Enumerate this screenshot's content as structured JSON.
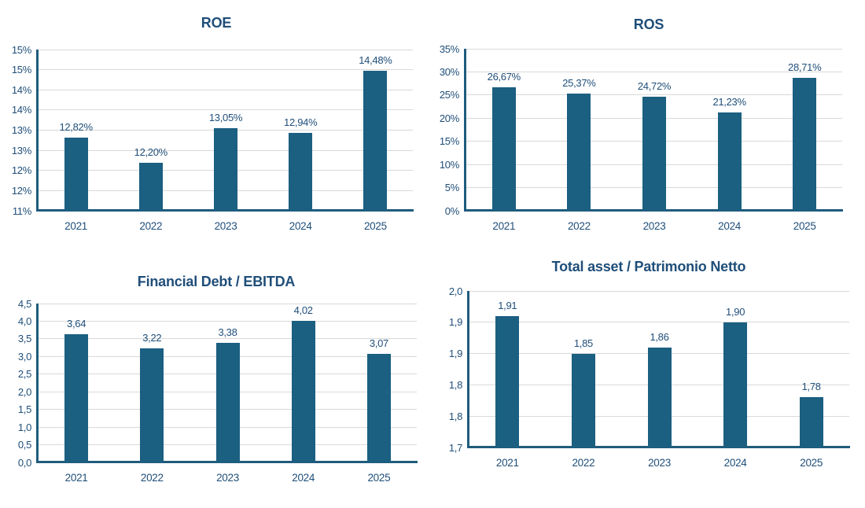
{
  "colors": {
    "bar": "#1B5F81",
    "title": "#1F4E79",
    "label": "#1F4E79",
    "axis_line": "#1F5C7D",
    "gridline": "#D9D9D9",
    "background": "#FFFFFF"
  },
  "chart_data": [
    {
      "type": "bar",
      "title": "ROE",
      "categories": [
        "2021",
        "2022",
        "2023",
        "2024",
        "2025"
      ],
      "values": [
        12.82,
        12.2,
        13.05,
        12.94,
        14.48
      ],
      "data_labels": [
        "12,82%",
        "12,20%",
        "13,05%",
        "12,94%",
        "14,48%"
      ],
      "xlabel": "",
      "ylabel": "",
      "ylim": [
        11,
        15
      ],
      "grid": true,
      "legend": "none",
      "y_ticks": [
        {
          "value": 11.0,
          "label": "11%"
        },
        {
          "value": 11.5,
          "label": "12%"
        },
        {
          "value": 12.0,
          "label": "12%"
        },
        {
          "value": 12.5,
          "label": "13%"
        },
        {
          "value": 13.0,
          "label": "13%"
        },
        {
          "value": 13.5,
          "label": "14%"
        },
        {
          "value": 14.0,
          "label": "14%"
        },
        {
          "value": 14.5,
          "label": "15%"
        },
        {
          "value": 15.0,
          "label": "15%"
        }
      ]
    },
    {
      "type": "bar",
      "title": "ROS",
      "categories": [
        "2021",
        "2022",
        "2023",
        "2024",
        "2025"
      ],
      "values": [
        26.67,
        25.37,
        24.72,
        21.23,
        28.71
      ],
      "data_labels": [
        "26,67%",
        "25,37%",
        "24,72%",
        "21,23%",
        "28,71%"
      ],
      "xlabel": "",
      "ylabel": "",
      "ylim": [
        0,
        35
      ],
      "grid": true,
      "legend": "none",
      "y_ticks": [
        {
          "value": 0,
          "label": "0%"
        },
        {
          "value": 5,
          "label": "5%"
        },
        {
          "value": 10,
          "label": "10%"
        },
        {
          "value": 15,
          "label": "15%"
        },
        {
          "value": 20,
          "label": "20%"
        },
        {
          "value": 25,
          "label": "25%"
        },
        {
          "value": 30,
          "label": "30%"
        },
        {
          "value": 35,
          "label": "35%"
        }
      ]
    },
    {
      "type": "bar",
      "title": "Financial Debt / EBITDA",
      "categories": [
        "2021",
        "2022",
        "2023",
        "2024",
        "2025"
      ],
      "values": [
        3.64,
        3.22,
        3.38,
        4.02,
        3.07
      ],
      "data_labels": [
        "3,64",
        "3,22",
        "3,38",
        "4,02",
        "3,07"
      ],
      "xlabel": "",
      "ylabel": "",
      "ylim": [
        0,
        4.5
      ],
      "grid": true,
      "legend": "none",
      "y_ticks": [
        {
          "value": 0.0,
          "label": "0,0"
        },
        {
          "value": 0.5,
          "label": "0,5"
        },
        {
          "value": 1.0,
          "label": "1,0"
        },
        {
          "value": 1.5,
          "label": "1,5"
        },
        {
          "value": 2.0,
          "label": "2,0"
        },
        {
          "value": 2.5,
          "label": "2,5"
        },
        {
          "value": 3.0,
          "label": "3,0"
        },
        {
          "value": 3.5,
          "label": "3,5"
        },
        {
          "value": 4.0,
          "label": "4,0"
        },
        {
          "value": 4.5,
          "label": "4,5"
        }
      ]
    },
    {
      "type": "bar",
      "title": "Total asset /  Patrimonio Netto",
      "categories": [
        "2021",
        "2022",
        "2023",
        "2024",
        "2025"
      ],
      "values": [
        1.91,
        1.85,
        1.86,
        1.9,
        1.78
      ],
      "data_labels": [
        "1,91",
        "1,85",
        "1,86",
        "1,90",
        "1,78"
      ],
      "xlabel": "",
      "ylabel": "",
      "ylim": [
        1.7,
        1.95
      ],
      "grid": true,
      "legend": "none",
      "y_ticks": [
        {
          "value": 1.7,
          "label": "1,7"
        },
        {
          "value": 1.75,
          "label": "1,8"
        },
        {
          "value": 1.8,
          "label": "1,8"
        },
        {
          "value": 1.85,
          "label": "1,9"
        },
        {
          "value": 1.9,
          "label": "1,9"
        },
        {
          "value": 1.95,
          "label": "2,0"
        }
      ]
    }
  ]
}
